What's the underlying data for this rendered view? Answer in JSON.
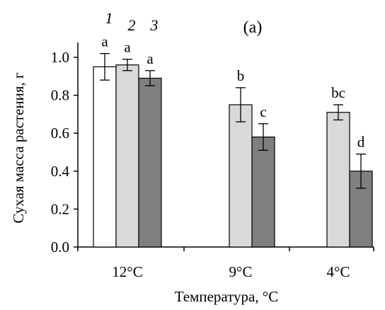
{
  "chart_data": {
    "type": "bar",
    "panel_label": "(a)",
    "xlabel": "Температура, °C",
    "ylabel": "Сухая масса растения, г",
    "ylim": [
      0.0,
      1.0
    ],
    "ymax_tick": 1.0,
    "yticks": [
      "0.0",
      "0.2",
      "0.4",
      "0.6",
      "0.8",
      "1.0"
    ],
    "grid": false,
    "categories": [
      "12°C",
      "9°C",
      "4°C"
    ],
    "series": [
      {
        "name": "1",
        "color": "#ffffff",
        "values": [
          0.95,
          null,
          null
        ],
        "errors": [
          0.07,
          null,
          null
        ],
        "labels": [
          "a",
          "",
          ""
        ]
      },
      {
        "name": "2",
        "color": "#d9d9d9",
        "values": [
          0.96,
          0.75,
          0.71
        ],
        "errors": [
          0.03,
          0.09,
          0.04
        ],
        "labels": [
          "a",
          "b",
          "bc"
        ]
      },
      {
        "name": "3",
        "color": "#7f7f7f",
        "values": [
          0.89,
          0.58,
          0.4
        ],
        "errors": [
          0.04,
          0.07,
          0.09
        ],
        "labels": [
          "a",
          "c",
          "d"
        ]
      }
    ]
  }
}
